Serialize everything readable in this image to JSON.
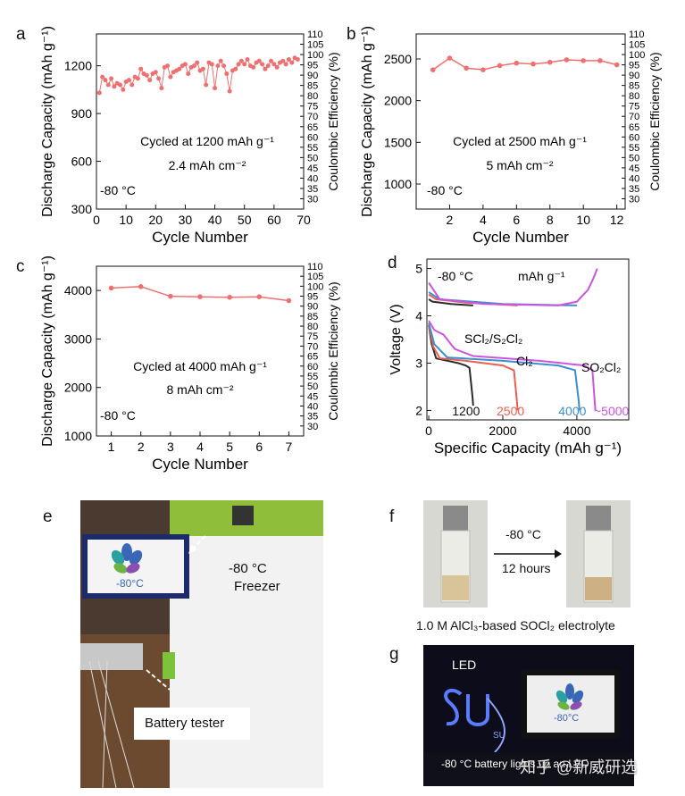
{
  "panels": {
    "a": "a",
    "b": "b",
    "c": "c",
    "d": "d",
    "e": "e",
    "f": "f",
    "g": "g"
  },
  "chart_data": [
    {
      "id": "a",
      "type": "scatter",
      "xlabel": "Cycle Number",
      "ylabel": "Discharge Capacity (mAh g⁻¹)",
      "y2label": "Coulombic Efficiency (%)",
      "xlim": [
        0,
        70
      ],
      "ylim": [
        300,
        1400
      ],
      "y2lim": [
        25,
        110
      ],
      "xticks": [
        0,
        10,
        20,
        30,
        40,
        50,
        60,
        70
      ],
      "yticks": [
        300,
        600,
        900,
        1200
      ],
      "y2ticks": [
        30,
        35,
        40,
        45,
        50,
        55,
        60,
        65,
        70,
        75,
        80,
        85,
        90,
        95,
        100,
        105,
        110
      ],
      "annotations": [
        "Cycled at 1200 mAh g⁻¹",
        "2.4 mAh cm⁻²",
        "-80 °C"
      ],
      "x": [
        1,
        2,
        3,
        4,
        5,
        6,
        7,
        8,
        9,
        10,
        11,
        12,
        13,
        14,
        15,
        16,
        17,
        18,
        19,
        20,
        21,
        22,
        23,
        24,
        25,
        26,
        27,
        28,
        29,
        30,
        31,
        32,
        33,
        34,
        35,
        36,
        37,
        38,
        39,
        40,
        41,
        42,
        43,
        44,
        45,
        46,
        47,
        48,
        49,
        50,
        51,
        52,
        53,
        54,
        55,
        56,
        57,
        58,
        59,
        60,
        61,
        62,
        63,
        64,
        65,
        66,
        67,
        68
      ],
      "values": [
        1030,
        1130,
        1110,
        1080,
        1120,
        1070,
        1090,
        1080,
        1050,
        1100,
        1110,
        1080,
        1130,
        1120,
        1180,
        1150,
        1140,
        1110,
        1150,
        1160,
        1120,
        1060,
        1190,
        1200,
        1130,
        1160,
        1170,
        1180,
        1200,
        1210,
        1150,
        1190,
        1200,
        1220,
        1170,
        1180,
        1080,
        1220,
        1210,
        1060,
        1200,
        1230,
        1200,
        1150,
        1040,
        1170,
        1180,
        1210,
        1230,
        1210,
        1240,
        1200,
        1190,
        1220,
        1230,
        1210,
        1180,
        1200,
        1230,
        1210,
        1190,
        1220,
        1230,
        1210,
        1240,
        1220,
        1250,
        1240
      ]
    },
    {
      "id": "b",
      "type": "line",
      "xlabel": "Cycle Number",
      "ylabel": "Discharge Capacity (mAh g⁻¹)",
      "y2label": "Coulombic Efficiency (%)",
      "xlim": [
        0,
        12.5
      ],
      "ylim": [
        700,
        2800
      ],
      "y2lim": [
        25,
        110
      ],
      "xticks": [
        2,
        4,
        6,
        8,
        10,
        12
      ],
      "yticks": [
        1000,
        1500,
        2000,
        2500
      ],
      "y2ticks": [
        30,
        35,
        40,
        45,
        50,
        55,
        60,
        65,
        70,
        75,
        80,
        85,
        90,
        95,
        100,
        105,
        110
      ],
      "annotations": [
        "Cycled at 2500 mAh g⁻¹",
        "5 mAh cm⁻²",
        "-80 °C"
      ],
      "x": [
        1,
        2,
        3,
        4,
        5,
        6,
        7,
        8,
        9,
        10,
        11,
        12
      ],
      "values": [
        2370,
        2510,
        2390,
        2370,
        2420,
        2450,
        2440,
        2460,
        2490,
        2480,
        2480,
        2430
      ]
    },
    {
      "id": "c",
      "type": "line",
      "xlabel": "Cycle Number",
      "ylabel": "Discharge Capacity (mAh g⁻¹)",
      "y2label": "Coulombic Efficiency (%)",
      "xlim": [
        0.5,
        7.5
      ],
      "ylim": [
        1000,
        4500
      ],
      "y2lim": [
        25,
        110
      ],
      "xticks": [
        1,
        2,
        3,
        4,
        5,
        6,
        7
      ],
      "yticks": [
        1000,
        2000,
        3000,
        4000
      ],
      "y2ticks": [
        30,
        35,
        40,
        45,
        50,
        55,
        60,
        65,
        70,
        75,
        80,
        85,
        90,
        95,
        100,
        105,
        110
      ],
      "annotations": [
        "Cycled at 4000 mAh g⁻¹",
        "8 mAh cm⁻²",
        "-80 °C"
      ],
      "x": [
        1,
        2,
        3,
        4,
        5,
        6,
        7
      ],
      "values": [
        4050,
        4080,
        3880,
        3870,
        3860,
        3870,
        3790
      ]
    },
    {
      "id": "d",
      "type": "line",
      "xlabel": "Specific Capacity (mAh g⁻¹)",
      "ylabel": "Voltage (V)",
      "xlim": [
        -50,
        5400
      ],
      "ylim": [
        1.8,
        5.2
      ],
      "xticks": [
        0,
        2000,
        4000
      ],
      "yticks": [
        2,
        3,
        4,
        5
      ],
      "annotations": [
        "-80 °C",
        "mAh g⁻¹",
        "SCl₂/S₂Cl₂",
        "Cl₂",
        "SO₂Cl₂"
      ],
      "series": [
        {
          "name": "1200",
          "color": "#2b2b2b",
          "discharge": [
            [
              0,
              3.8
            ],
            [
              80,
              3.4
            ],
            [
              200,
              3.1
            ],
            [
              500,
              3.05
            ],
            [
              800,
              3.0
            ],
            [
              1000,
              2.95
            ],
            [
              1100,
              2.9
            ],
            [
              1180,
              2.3
            ],
            [
              1200,
              2.1
            ]
          ],
          "charge": [
            [
              0,
              4.35
            ],
            [
              100,
              4.3
            ],
            [
              600,
              4.25
            ],
            [
              1200,
              4.22
            ]
          ]
        },
        {
          "name": "2500",
          "color": "#e86050",
          "discharge": [
            [
              0,
              3.8
            ],
            [
              120,
              3.35
            ],
            [
              300,
              3.1
            ],
            [
              1000,
              3.05
            ],
            [
              2000,
              2.95
            ],
            [
              2300,
              2.85
            ],
            [
              2380,
              2.2
            ],
            [
              2400,
              2.0
            ]
          ],
          "charge": [
            [
              0,
              4.45
            ],
            [
              200,
              4.35
            ],
            [
              1000,
              4.28
            ],
            [
              2400,
              4.22
            ]
          ]
        },
        {
          "name": "4000",
          "color": "#3a8fd0",
          "discharge": [
            [
              0,
              3.85
            ],
            [
              150,
              3.4
            ],
            [
              500,
              3.12
            ],
            [
              2000,
              3.05
            ],
            [
              3500,
              2.95
            ],
            [
              3950,
              2.85
            ],
            [
              4050,
              2.2
            ],
            [
              4070,
              2.0
            ]
          ],
          "charge": [
            [
              0,
              4.5
            ],
            [
              300,
              4.35
            ],
            [
              2000,
              4.25
            ],
            [
              4000,
              4.22
            ]
          ]
        },
        {
          "name": "~5000",
          "color": "#cc55dd",
          "discharge": [
            [
              0,
              3.9
            ],
            [
              150,
              3.7
            ],
            [
              400,
              3.6
            ],
            [
              700,
              3.3
            ],
            [
              1200,
              3.15
            ],
            [
              3000,
              3.05
            ],
            [
              4200,
              2.95
            ],
            [
              4420,
              2.85
            ],
            [
              4480,
              2.2
            ],
            [
              4500,
              2.0
            ]
          ],
          "charge": [
            [
              0,
              4.7
            ],
            [
              300,
              4.35
            ],
            [
              1500,
              4.25
            ],
            [
              3500,
              4.22
            ],
            [
              4000,
              4.3
            ],
            [
              4300,
              4.55
            ],
            [
              4450,
              4.8
            ],
            [
              4550,
              5.0
            ]
          ]
        }
      ]
    }
  ],
  "photos": {
    "e": {
      "screen_temp": "-80°C",
      "freezer_label_1": "-80 °C",
      "freezer_label_2": "Freezer",
      "tester_label": "Battery tester"
    },
    "f": {
      "arrow_top": "-80 °C",
      "arrow_bottom": "12 hours",
      "caption": "1.0 M AlCl₃-based SOCl₂ electrolyte"
    },
    "g": {
      "led_label": "LED",
      "led_word": "SU",
      "screen_temp": "-80°C",
      "caption": "-80 °C battery lights up an LED",
      "watermark": "知乎 @新威研选"
    }
  },
  "colors": {
    "cap_marker": "#ef7070",
    "axis": "#111111"
  }
}
